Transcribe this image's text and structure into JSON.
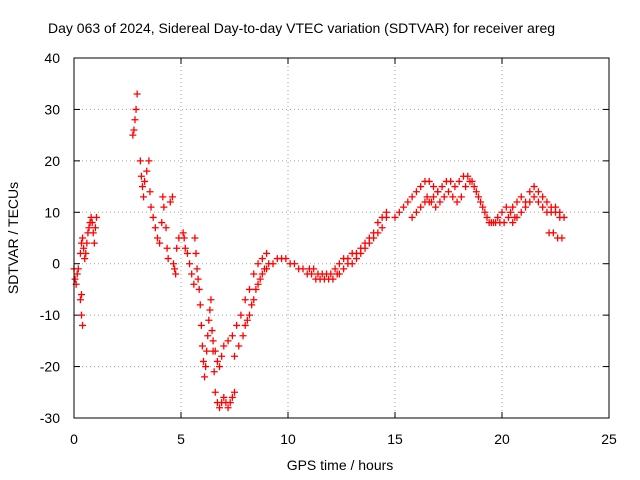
{
  "chart_data": {
    "type": "scatter",
    "title": "Day 063 of 2024, Sidereal Day-to-day VTEC variation (SDTVAR) for receiver areg",
    "xlabel": "GPS time / hours",
    "ylabel": "SDTVAR / TECUs",
    "xlim": [
      0,
      25
    ],
    "ylim": [
      -30,
      40
    ],
    "xticks": [
      "0",
      "5",
      "10",
      "15",
      "20",
      "25"
    ],
    "yticks": [
      "-30",
      "-20",
      "-10",
      "0",
      "10",
      "20",
      "30",
      "40"
    ],
    "grid": true,
    "marker": "+",
    "color": "#ff0000",
    "series": [
      {
        "name": "",
        "points": [
          [
            0.0,
            -1
          ],
          [
            0.05,
            -3
          ],
          [
            0.1,
            -4
          ],
          [
            0.15,
            -2
          ],
          [
            0.2,
            -1
          ],
          [
            0.3,
            -7
          ],
          [
            0.35,
            -10
          ],
          [
            0.4,
            -12
          ],
          [
            0.35,
            -6
          ],
          [
            0.3,
            2
          ],
          [
            0.35,
            4
          ],
          [
            0.4,
            5
          ],
          [
            0.45,
            3
          ],
          [
            0.5,
            1
          ],
          [
            0.55,
            2
          ],
          [
            0.6,
            4
          ],
          [
            0.65,
            6
          ],
          [
            0.7,
            7
          ],
          [
            0.75,
            8
          ],
          [
            0.8,
            9
          ],
          [
            0.85,
            8
          ],
          [
            0.9,
            6
          ],
          [
            0.95,
            4
          ],
          [
            1.0,
            7
          ],
          [
            1.05,
            9
          ],
          [
            2.75,
            25
          ],
          [
            2.8,
            26
          ],
          [
            2.85,
            28
          ],
          [
            2.9,
            30
          ],
          [
            2.95,
            33
          ],
          [
            3.1,
            20
          ],
          [
            3.15,
            17
          ],
          [
            3.2,
            15
          ],
          [
            3.25,
            13
          ],
          [
            3.3,
            16
          ],
          [
            3.4,
            18
          ],
          [
            3.5,
            20
          ],
          [
            3.55,
            14
          ],
          [
            3.6,
            11
          ],
          [
            3.7,
            9
          ],
          [
            3.8,
            7
          ],
          [
            3.9,
            5
          ],
          [
            4.0,
            4
          ],
          [
            4.1,
            8
          ],
          [
            4.15,
            13
          ],
          [
            4.2,
            11
          ],
          [
            4.3,
            7
          ],
          [
            4.35,
            3
          ],
          [
            4.4,
            1
          ],
          [
            4.5,
            12
          ],
          [
            4.6,
            13
          ],
          [
            4.65,
            0
          ],
          [
            4.7,
            -1
          ],
          [
            4.75,
            -2
          ],
          [
            4.8,
            3
          ],
          [
            4.9,
            5
          ],
          [
            5.1,
            6
          ],
          [
            5.15,
            5
          ],
          [
            5.2,
            3
          ],
          [
            5.3,
            2
          ],
          [
            5.4,
            0
          ],
          [
            5.5,
            -2
          ],
          [
            5.6,
            -4
          ],
          [
            5.65,
            5
          ],
          [
            5.7,
            2
          ],
          [
            5.75,
            -1
          ],
          [
            5.8,
            -3
          ],
          [
            5.85,
            -5
          ],
          [
            5.9,
            -8
          ],
          [
            5.95,
            -12
          ],
          [
            6.0,
            -16
          ],
          [
            6.05,
            -19
          ],
          [
            6.1,
            -22
          ],
          [
            6.15,
            -20
          ],
          [
            6.2,
            -17
          ],
          [
            6.25,
            -14
          ],
          [
            6.3,
            -11
          ],
          [
            6.35,
            -9
          ],
          [
            6.4,
            -7
          ],
          [
            6.45,
            -13
          ],
          [
            6.5,
            -17
          ],
          [
            6.55,
            -21
          ],
          [
            6.6,
            -25
          ],
          [
            6.7,
            -27
          ],
          [
            6.8,
            -28
          ],
          [
            6.9,
            -27
          ],
          [
            7.0,
            -26
          ],
          [
            7.1,
            -27
          ],
          [
            7.2,
            -28
          ],
          [
            7.3,
            -27
          ],
          [
            7.4,
            -26
          ],
          [
            7.5,
            -25
          ],
          [
            6.5,
            -15
          ],
          [
            6.6,
            -17
          ],
          [
            6.7,
            -19
          ],
          [
            6.8,
            -20
          ],
          [
            6.9,
            -18
          ],
          [
            7.0,
            -16
          ],
          [
            7.2,
            -15
          ],
          [
            7.4,
            -14
          ],
          [
            7.6,
            -12
          ],
          [
            7.8,
            -10
          ],
          [
            8.0,
            -7
          ],
          [
            8.2,
            -5
          ],
          [
            8.4,
            -2
          ],
          [
            8.6,
            0
          ],
          [
            8.8,
            1
          ],
          [
            9.0,
            2
          ],
          [
            7.5,
            -18
          ],
          [
            7.7,
            -16
          ],
          [
            7.9,
            -14
          ],
          [
            8.1,
            -11
          ],
          [
            8.3,
            -8
          ],
          [
            8.5,
            -5
          ],
          [
            8.7,
            -3
          ],
          [
            8.9,
            -1
          ],
          [
            9.1,
            0
          ],
          [
            9.3,
            0
          ],
          [
            9.5,
            1
          ],
          [
            9.7,
            1
          ],
          [
            9.9,
            1
          ],
          [
            10.1,
            0
          ],
          [
            8.0,
            -12
          ],
          [
            8.2,
            -10
          ],
          [
            8.4,
            -7
          ],
          [
            8.6,
            -4
          ],
          [
            8.8,
            -2
          ],
          [
            9.0,
            -1
          ],
          [
            10.3,
            0
          ],
          [
            10.5,
            -1
          ],
          [
            10.7,
            -1
          ],
          [
            10.9,
            -2
          ],
          [
            11.1,
            -2
          ],
          [
            11.3,
            -3
          ],
          [
            11.5,
            -3
          ],
          [
            11.7,
            -3
          ],
          [
            11.9,
            -3
          ],
          [
            12.1,
            -3
          ],
          [
            12.3,
            -2
          ],
          [
            11.0,
            -1
          ],
          [
            11.2,
            -1
          ],
          [
            11.4,
            -2
          ],
          [
            11.6,
            -2
          ],
          [
            11.8,
            -2
          ],
          [
            12.0,
            -2
          ],
          [
            12.2,
            -1
          ],
          [
            12.4,
            0
          ],
          [
            12.6,
            1
          ],
          [
            12.8,
            1
          ],
          [
            13.0,
            2
          ],
          [
            13.2,
            2
          ],
          [
            13.4,
            3
          ],
          [
            13.6,
            4
          ],
          [
            13.8,
            5
          ],
          [
            14.0,
            6
          ],
          [
            14.2,
            8
          ],
          [
            14.4,
            9
          ],
          [
            14.6,
            10
          ],
          [
            12.4,
            -2
          ],
          [
            12.6,
            -1
          ],
          [
            12.8,
            0
          ],
          [
            13.0,
            0
          ],
          [
            13.2,
            1
          ],
          [
            13.4,
            2
          ],
          [
            13.6,
            3
          ],
          [
            13.8,
            4
          ],
          [
            14.0,
            5
          ],
          [
            14.2,
            6
          ],
          [
            14.4,
            7
          ],
          [
            14.6,
            9
          ],
          [
            15.0,
            9
          ],
          [
            15.2,
            10
          ],
          [
            15.4,
            11
          ],
          [
            15.6,
            12
          ],
          [
            15.8,
            13
          ],
          [
            16.0,
            14
          ],
          [
            16.2,
            15
          ],
          [
            16.4,
            16
          ],
          [
            16.6,
            16
          ],
          [
            16.8,
            15
          ],
          [
            17.0,
            14
          ],
          [
            15.8,
            9
          ],
          [
            16.0,
            10
          ],
          [
            16.2,
            11
          ],
          [
            16.4,
            12
          ],
          [
            16.6,
            12
          ],
          [
            16.8,
            13
          ],
          [
            17.0,
            14
          ],
          [
            17.2,
            15
          ],
          [
            17.4,
            16
          ],
          [
            17.6,
            16
          ],
          [
            17.8,
            15
          ],
          [
            18.0,
            16
          ],
          [
            18.2,
            17
          ],
          [
            18.4,
            17
          ],
          [
            18.6,
            16
          ],
          [
            18.8,
            14
          ],
          [
            19.0,
            12
          ],
          [
            19.2,
            10
          ],
          [
            19.4,
            8
          ],
          [
            19.6,
            8
          ],
          [
            19.8,
            9
          ],
          [
            20.0,
            10
          ],
          [
            20.2,
            11
          ],
          [
            20.4,
            10
          ],
          [
            20.6,
            9
          ],
          [
            16.5,
            13
          ],
          [
            16.7,
            12
          ],
          [
            16.9,
            11
          ],
          [
            17.1,
            12
          ],
          [
            17.3,
            13
          ],
          [
            17.5,
            14
          ],
          [
            17.7,
            13
          ],
          [
            17.9,
            12
          ],
          [
            18.1,
            13
          ],
          [
            18.3,
            15
          ],
          [
            18.5,
            16
          ],
          [
            18.7,
            15
          ],
          [
            18.9,
            13
          ],
          [
            19.1,
            11
          ],
          [
            19.3,
            9
          ],
          [
            19.5,
            8
          ],
          [
            19.7,
            8
          ],
          [
            19.9,
            8
          ],
          [
            20.1,
            8
          ],
          [
            20.3,
            9
          ],
          [
            20.5,
            11
          ],
          [
            20.7,
            12
          ],
          [
            20.9,
            13
          ],
          [
            21.1,
            12
          ],
          [
            21.3,
            14
          ],
          [
            21.5,
            15
          ],
          [
            21.7,
            14
          ],
          [
            21.9,
            13
          ],
          [
            22.1,
            12
          ],
          [
            22.3,
            11
          ],
          [
            22.5,
            10
          ],
          [
            22.7,
            10
          ],
          [
            22.9,
            9
          ],
          [
            20.5,
            8
          ],
          [
            20.7,
            9
          ],
          [
            20.9,
            10
          ],
          [
            21.1,
            11
          ],
          [
            21.3,
            12
          ],
          [
            21.5,
            13
          ],
          [
            21.7,
            12
          ],
          [
            21.9,
            11
          ],
          [
            22.1,
            10
          ],
          [
            22.3,
            10
          ],
          [
            22.5,
            11
          ],
          [
            22.7,
            9
          ],
          [
            22.2,
            6
          ],
          [
            22.4,
            6
          ],
          [
            22.6,
            5
          ],
          [
            22.8,
            5
          ]
        ]
      }
    ]
  }
}
